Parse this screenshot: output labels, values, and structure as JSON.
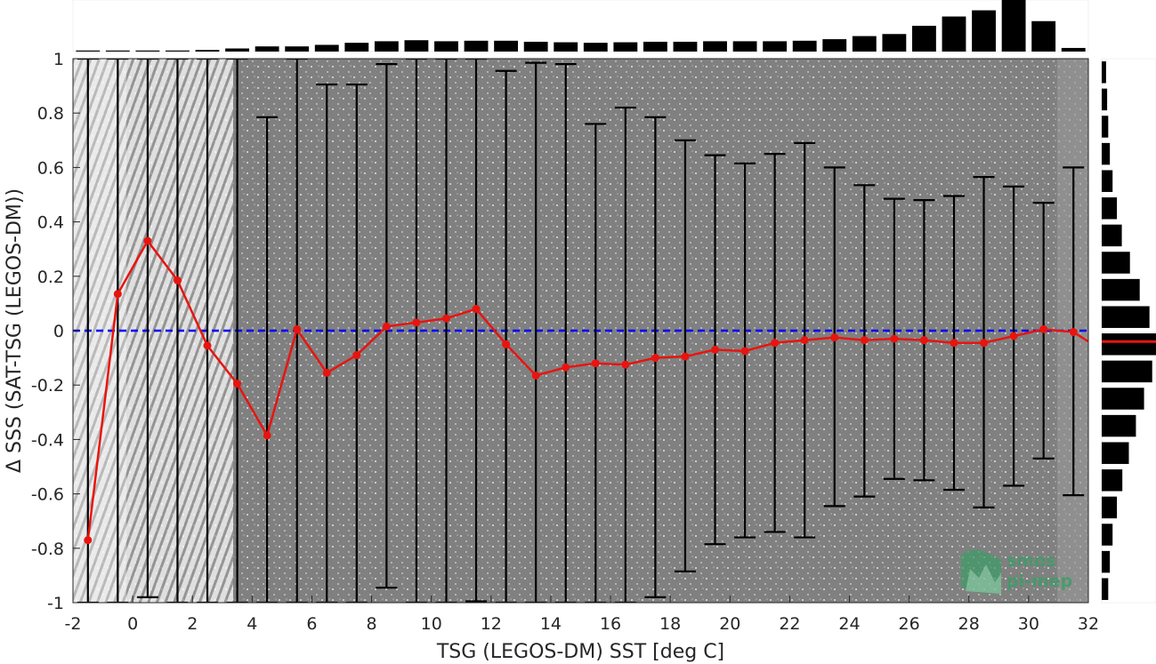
{
  "chart_data": {
    "type": "scatter",
    "xlabel": "TSG (LEGOS-DM) SST [deg C]",
    "ylabel": "Δ SSS (SAT-TSG (LEGOS-DM))",
    "xlim": [
      -2,
      32
    ],
    "ylim": [
      -1,
      1
    ],
    "x_ticks": [
      "-2",
      "0",
      "2",
      "4",
      "6",
      "8",
      "10",
      "12",
      "14",
      "16",
      "18",
      "20",
      "22",
      "24",
      "26",
      "28",
      "30",
      "32"
    ],
    "y_ticks": [
      "-1",
      "-0.8",
      "-0.6",
      "-0.4",
      "-0.2",
      "0",
      "0.2",
      "0.4",
      "0.6",
      "0.8",
      "1"
    ],
    "zero_line": {
      "y": 0,
      "style": "dashed",
      "color": "#0000ff"
    },
    "series": [
      {
        "x": [
          -1.5,
          -0.5,
          0.5,
          1.5,
          2.5,
          3.5,
          4.5,
          5.5,
          6.5,
          7.5,
          8.5,
          9.5,
          10.5,
          11.5,
          12.5,
          13.5,
          14.5,
          15.5,
          16.5,
          17.5,
          18.5,
          19.5,
          20.5,
          21.5,
          22.5,
          23.5,
          24.5,
          25.5,
          26.5,
          27.5,
          28.5,
          29.5,
          30.5,
          31.5
        ],
        "mean": [
          -0.77,
          0.135,
          0.33,
          0.185,
          -0.055,
          -0.195,
          -0.385,
          0.005,
          -0.155,
          -0.09,
          0.015,
          0.03,
          0.045,
          0.08,
          -0.05,
          -0.165,
          -0.135,
          -0.12,
          -0.125,
          -0.1,
          -0.095,
          -0.07,
          -0.075,
          -0.045,
          -0.035,
          -0.025,
          -0.035,
          -0.03,
          -0.035,
          -0.045,
          -0.045,
          -0.02,
          0.005,
          -0.005
        ],
        "err_low": [
          -1,
          -1,
          -0.98,
          -1,
          -1,
          -1,
          -1,
          -1,
          -1,
          -1,
          -0.945,
          -1,
          -1,
          -0.995,
          -1,
          -1,
          -1,
          -1,
          -1,
          -0.98,
          -0.885,
          -0.785,
          -0.76,
          -0.74,
          -0.76,
          -0.645,
          -0.61,
          -0.545,
          -0.55,
          -0.585,
          -0.65,
          -0.57,
          -0.47,
          -0.605
        ],
        "err_high": [
          1,
          1,
          1,
          1,
          1,
          1,
          0.785,
          1,
          0.905,
          0.905,
          0.98,
          1,
          1,
          1,
          0.955,
          0.985,
          0.98,
          0.76,
          0.82,
          0.785,
          0.7,
          0.645,
          0.615,
          0.65,
          0.69,
          0.6,
          0.535,
          0.485,
          0.48,
          0.495,
          0.565,
          0.53,
          0.47,
          0.6
        ],
        "color": "#e8140f",
        "errorbar_color": "#000000"
      }
    ],
    "top_histogram": {
      "bin_centers": [
        -1.5,
        -0.5,
        0.5,
        1.5,
        2.5,
        3.5,
        4.5,
        5.5,
        6.5,
        7.5,
        8.5,
        9.5,
        10.5,
        11.5,
        12.5,
        13.5,
        14.5,
        15.5,
        16.5,
        17.5,
        18.5,
        19.5,
        20.5,
        21.5,
        22.5,
        23.5,
        24.5,
        25.5,
        26.5,
        27.5,
        28.5,
        29.5,
        30.5,
        31.5
      ],
      "relative_counts": [
        0.02,
        0.02,
        0.02,
        0.02,
        0.03,
        0.06,
        0.1,
        0.1,
        0.13,
        0.17,
        0.2,
        0.22,
        0.2,
        0.21,
        0.21,
        0.19,
        0.18,
        0.17,
        0.18,
        0.19,
        0.19,
        0.2,
        0.2,
        0.2,
        0.21,
        0.24,
        0.3,
        0.34,
        0.5,
        0.68,
        0.8,
        1.0,
        0.59,
        0.07
      ]
    },
    "right_histogram": {
      "bin_centers": [
        0.95,
        0.85,
        0.75,
        0.65,
        0.55,
        0.45,
        0.35,
        0.25,
        0.15,
        0.05,
        -0.05,
        -0.15,
        -0.25,
        -0.35,
        -0.45,
        -0.55,
        -0.65,
        -0.75,
        -0.85,
        -0.95
      ],
      "relative_counts": [
        0.08,
        0.1,
        0.12,
        0.15,
        0.2,
        0.28,
        0.37,
        0.52,
        0.7,
        0.88,
        1.0,
        0.93,
        0.78,
        0.63,
        0.5,
        0.38,
        0.28,
        0.2,
        0.15,
        0.12
      ],
      "mean_line": {
        "y": -0.04,
        "color": "#e8140f"
      }
    },
    "scatter_cloud_color": "#808080",
    "grid": false
  },
  "logo": {
    "line1": "smos",
    "line2": "pi-mep",
    "color": "#3a9d66"
  }
}
